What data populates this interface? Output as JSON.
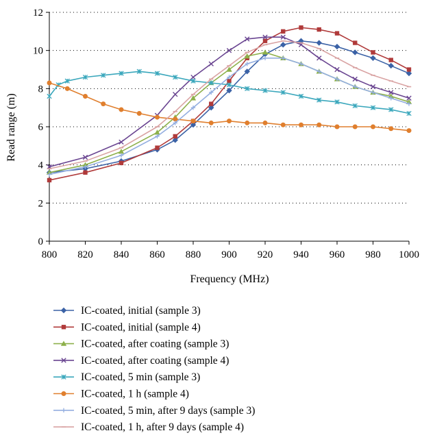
{
  "chart_data": {
    "type": "line",
    "title": "",
    "xlabel": "Frequency (MHz)",
    "ylabel": "Read range (m)",
    "xlim": [
      800,
      1000
    ],
    "ylim": [
      0,
      12
    ],
    "x_ticks": [
      "800",
      "820",
      "840",
      "860",
      "880",
      "900",
      "920",
      "940",
      "960",
      "980",
      "1000"
    ],
    "y_ticks": [
      "0",
      "2",
      "4",
      "6",
      "8",
      "10",
      "12"
    ],
    "grid": "horizontal dotted",
    "legend_position": "bottom",
    "series": [
      {
        "name": "IC-coated, initial (sample 3)",
        "color": "#3b62a6",
        "marker": "diamond",
        "x": [
          800,
          820,
          840,
          860,
          870,
          880,
          890,
          900,
          910,
          920,
          930,
          940,
          950,
          960,
          970,
          980,
          990,
          1000
        ],
        "y": [
          3.6,
          3.8,
          4.2,
          4.8,
          5.3,
          6.1,
          7.0,
          7.9,
          8.9,
          9.8,
          10.3,
          10.5,
          10.4,
          10.2,
          9.9,
          9.6,
          9.2,
          8.8
        ]
      },
      {
        "name": "IC-coated, initial (sample 4)",
        "color": "#b03a3a",
        "marker": "square",
        "x": [
          800,
          820,
          840,
          860,
          870,
          880,
          890,
          900,
          910,
          920,
          930,
          940,
          950,
          960,
          970,
          980,
          990,
          1000
        ],
        "y": [
          3.2,
          3.6,
          4.1,
          4.9,
          5.5,
          6.3,
          7.2,
          8.4,
          9.6,
          10.5,
          11.0,
          11.2,
          11.1,
          10.9,
          10.4,
          9.9,
          9.5,
          9.0
        ]
      },
      {
        "name": "IC-coated, after coating (sample 3)",
        "color": "#8db04a",
        "marker": "triangle",
        "x": [
          800,
          820,
          840,
          860,
          870,
          880,
          890,
          900,
          910,
          920,
          930,
          940,
          950,
          960,
          970,
          980,
          990,
          1000
        ],
        "y": [
          3.6,
          4.0,
          4.7,
          5.7,
          6.5,
          7.5,
          8.3,
          9.0,
          9.7,
          9.9,
          9.6,
          9.3,
          8.9,
          8.5,
          8.1,
          7.8,
          7.6,
          7.3
        ]
      },
      {
        "name": "IC-coated, after coating (sample 4)",
        "color": "#6a4591",
        "marker": "x",
        "x": [
          800,
          820,
          840,
          860,
          870,
          880,
          890,
          900,
          910,
          920,
          930,
          940,
          950,
          960,
          970,
          980,
          990,
          1000
        ],
        "y": [
          3.9,
          4.4,
          5.2,
          6.6,
          7.7,
          8.6,
          9.3,
          10.0,
          10.6,
          10.7,
          10.7,
          10.3,
          9.6,
          9.0,
          8.5,
          8.1,
          7.8,
          7.5
        ]
      },
      {
        "name": "IC-coated, 5 min (sample 3)",
        "color": "#3aa7bc",
        "marker": "asterisk",
        "x": [
          800,
          805,
          810,
          820,
          830,
          840,
          850,
          860,
          870,
          880,
          890,
          900,
          910,
          920,
          930,
          940,
          950,
          960,
          970,
          980,
          990,
          1000
        ],
        "y": [
          7.6,
          8.2,
          8.4,
          8.6,
          8.7,
          8.8,
          8.9,
          8.8,
          8.6,
          8.4,
          8.3,
          8.2,
          8.0,
          7.9,
          7.8,
          7.6,
          7.4,
          7.3,
          7.1,
          7.0,
          6.9,
          6.7
        ]
      },
      {
        "name": "IC-coated, 1 h (sample 4)",
        "color": "#e07f2e",
        "marker": "circle",
        "x": [
          800,
          810,
          820,
          830,
          840,
          850,
          860,
          870,
          880,
          890,
          900,
          910,
          920,
          930,
          940,
          950,
          960,
          970,
          980,
          990,
          1000
        ],
        "y": [
          8.3,
          8.0,
          7.6,
          7.2,
          6.9,
          6.7,
          6.5,
          6.4,
          6.3,
          6.2,
          6.3,
          6.2,
          6.2,
          6.1,
          6.1,
          6.1,
          6.0,
          6.0,
          6.0,
          5.9,
          5.8
        ]
      },
      {
        "name": "IC-coated, 5 min, after 9 days (sample 3)",
        "color": "#93aee0",
        "marker": "plus",
        "x": [
          800,
          820,
          840,
          860,
          870,
          880,
          890,
          900,
          910,
          920,
          930,
          940,
          950,
          960,
          970,
          980,
          990,
          1000
        ],
        "y": [
          3.5,
          3.9,
          4.5,
          5.5,
          6.2,
          7.0,
          7.8,
          8.6,
          9.3,
          9.6,
          9.6,
          9.3,
          8.9,
          8.5,
          8.1,
          7.8,
          7.5,
          7.2
        ]
      },
      {
        "name": "IC-coated, 1 h, after 9 days (sample 4)",
        "color": "#d9a3a3",
        "marker": "dash",
        "x": [
          800,
          820,
          840,
          860,
          870,
          880,
          890,
          900,
          910,
          920,
          930,
          940,
          950,
          960,
          970,
          980,
          990,
          1000
        ],
        "y": [
          3.8,
          4.2,
          4.9,
          6.0,
          6.8,
          7.7,
          8.5,
          9.2,
          9.9,
          10.3,
          10.5,
          10.4,
          10.1,
          9.6,
          9.1,
          8.7,
          8.4,
          8.1
        ]
      }
    ]
  }
}
